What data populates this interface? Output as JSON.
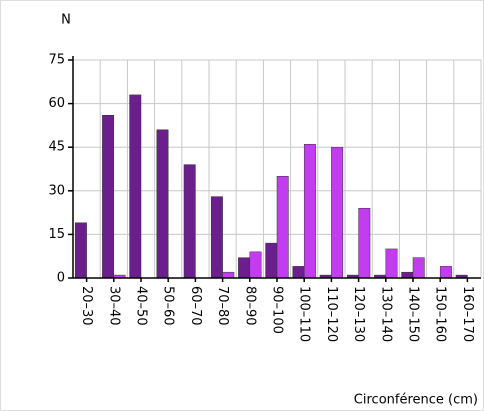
{
  "chart_data": {
    "type": "bar",
    "y_label": "N",
    "x_label": "Circonférence (cm)",
    "categories": [
      "20–30",
      "30–40",
      "40–50",
      "50–60",
      "60–70",
      "70–80",
      "80–90",
      "90–100",
      "100–110",
      "110–120",
      "120–130",
      "130–140",
      "140–150",
      "150–160",
      "160–170"
    ],
    "series": [
      {
        "color": "#6b1f8c",
        "values": [
          19,
          56,
          63,
          51,
          39,
          28,
          7,
          12,
          4,
          1,
          1,
          1,
          2,
          0,
          1
        ]
      },
      {
        "color": "#c23cf0",
        "values": [
          0,
          1,
          0,
          0,
          0,
          2,
          9,
          35,
          46,
          45,
          24,
          10,
          7,
          4,
          0
        ]
      }
    ],
    "ylim": [
      0,
      75
    ],
    "yticks": [
      0,
      15,
      30,
      45,
      60,
      75
    ],
    "grid": true
  }
}
